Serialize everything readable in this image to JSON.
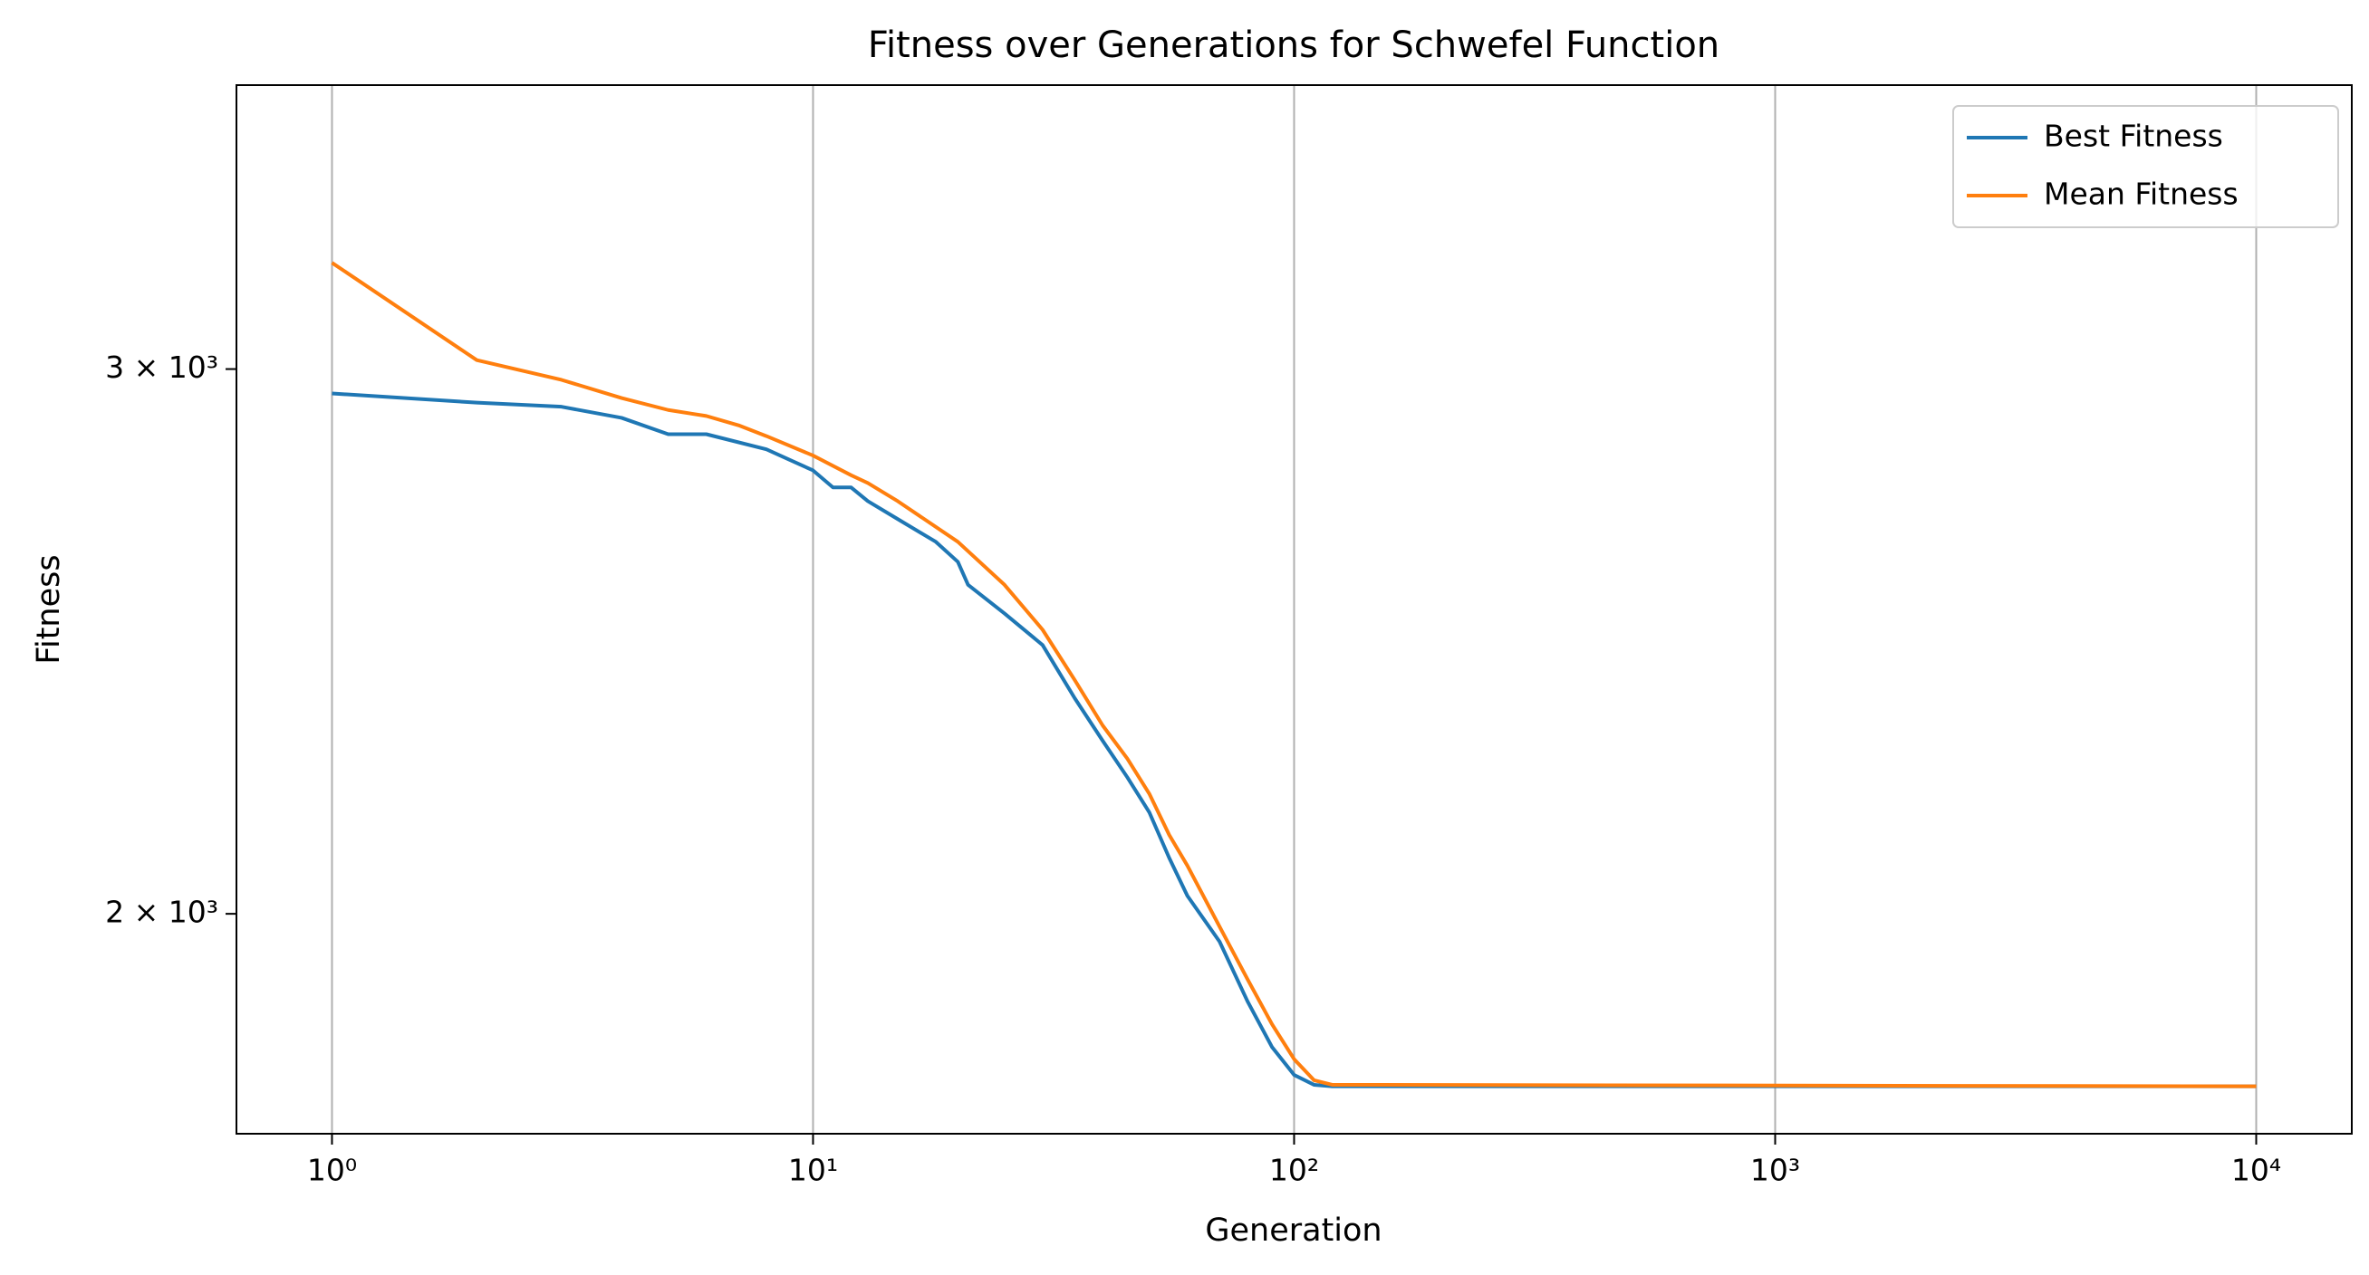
{
  "chart_data": {
    "type": "line",
    "title": "Fitness over Generations for Schwefel Function",
    "x_label": "Generation",
    "y_label": "Fitness",
    "x_scale": "log",
    "y_scale": "log",
    "grid": "x",
    "legend": "upper right",
    "xlim": [
      0.633,
      15800
    ],
    "ylim": [
      1698,
      3706
    ],
    "xticks": [
      {
        "value": 1,
        "label": "10⁰"
      },
      {
        "value": 10,
        "label": "10¹"
      },
      {
        "value": 100,
        "label": "10²"
      },
      {
        "value": 1000,
        "label": "10³"
      },
      {
        "value": 10000,
        "label": "10⁴"
      }
    ],
    "yticks": [
      {
        "value": 2000,
        "label": "2 × 10³"
      },
      {
        "value": 3000,
        "label": "3 × 10³"
      }
    ],
    "series": [
      {
        "name": "Best Fitness",
        "color": "#1f77b4",
        "x": [
          1,
          2,
          3,
          4,
          5,
          6,
          8,
          10,
          11,
          12,
          13,
          15,
          18,
          20,
          21,
          25,
          30,
          35,
          40,
          45,
          50,
          55,
          60,
          70,
          80,
          90,
          100,
          110,
          120,
          10000
        ],
        "values": [
          2946,
          2926,
          2917,
          2893,
          2858,
          2858,
          2826,
          2782,
          2747,
          2747,
          2719,
          2683,
          2638,
          2599,
          2555,
          2501,
          2443,
          2348,
          2275,
          2214,
          2157,
          2085,
          2027,
          1959,
          1874,
          1811,
          1774,
          1761,
          1759,
          1759
        ]
      },
      {
        "name": "Mean Fitness",
        "color": "#ff7f0e",
        "x": [
          1,
          2,
          3,
          4,
          5,
          6,
          7,
          8,
          10,
          12,
          13,
          15,
          20,
          25,
          30,
          35,
          40,
          45,
          50,
          55,
          60,
          70,
          80,
          90,
          100,
          110,
          120,
          10000
        ],
        "values": [
          3247,
          3020,
          2976,
          2936,
          2910,
          2897,
          2877,
          2854,
          2813,
          2772,
          2756,
          2719,
          2638,
          2555,
          2471,
          2380,
          2301,
          2245,
          2187,
          2121,
          2073,
          1981,
          1905,
          1842,
          1795,
          1767,
          1761,
          1759
        ]
      }
    ]
  }
}
